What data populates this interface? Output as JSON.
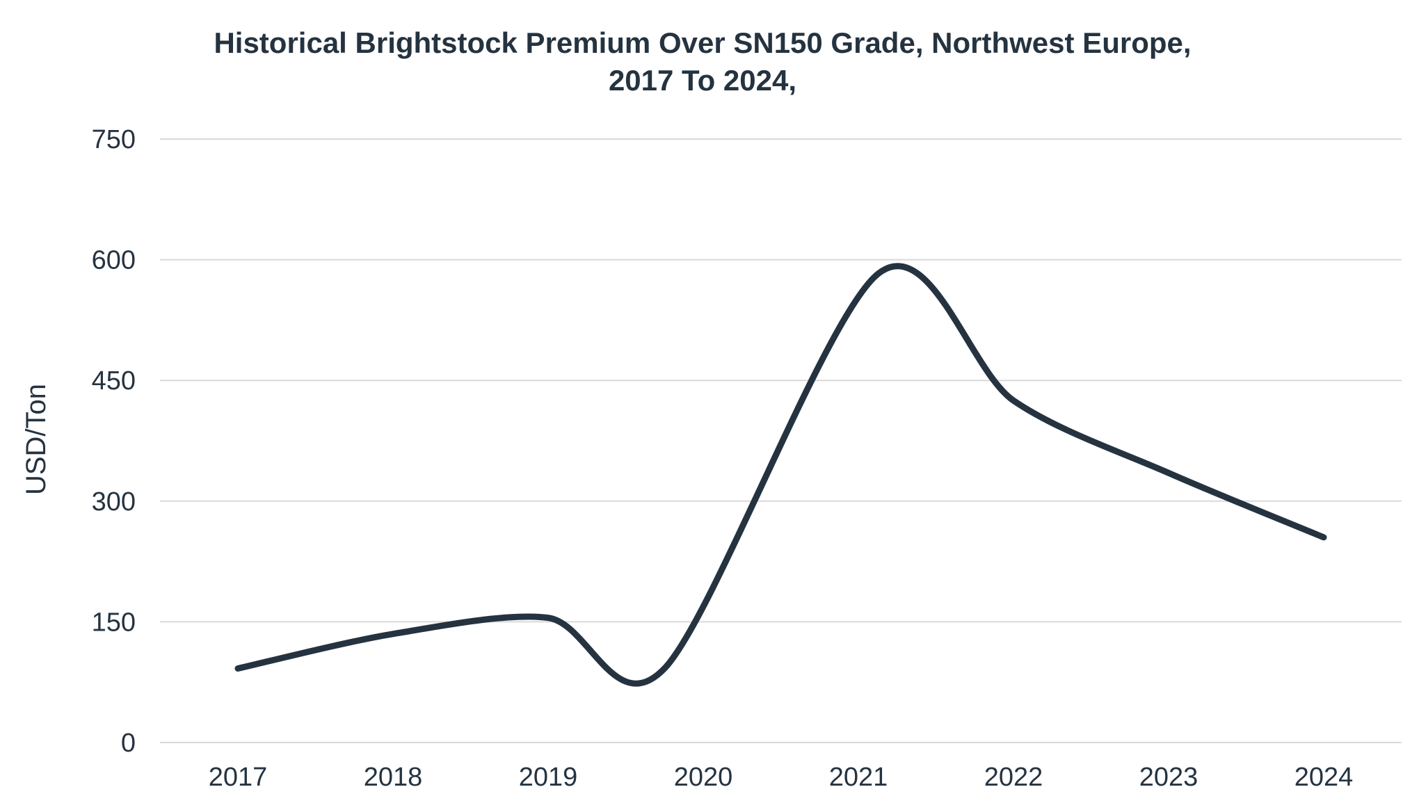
{
  "chart_data": {
    "type": "line",
    "title_lines": [
      "Historical Brightstock Premium Over SN150 Grade, Northwest Europe,",
      "2017 To 2024,"
    ],
    "xlabel": "",
    "ylabel": "USD/Ton",
    "categories": [
      "2017",
      "2018",
      "2019",
      "2020",
      "2021",
      "2022",
      "2023",
      "2024"
    ],
    "ylim": [
      0,
      750
    ],
    "yticks": [
      0,
      150,
      300,
      450,
      600,
      750
    ],
    "grid": true,
    "smooth": true,
    "colors": {
      "series": "#253340",
      "grid": "#d9d9d9",
      "text": "#253340"
    },
    "series": [
      {
        "name": "",
        "x": [
          2017,
          2018,
          2019,
          2019.75,
          2021.13,
          2022,
          2023,
          2024
        ],
        "values": [
          92,
          135,
          155,
          92,
          583,
          425,
          335,
          255
        ]
      }
    ]
  }
}
